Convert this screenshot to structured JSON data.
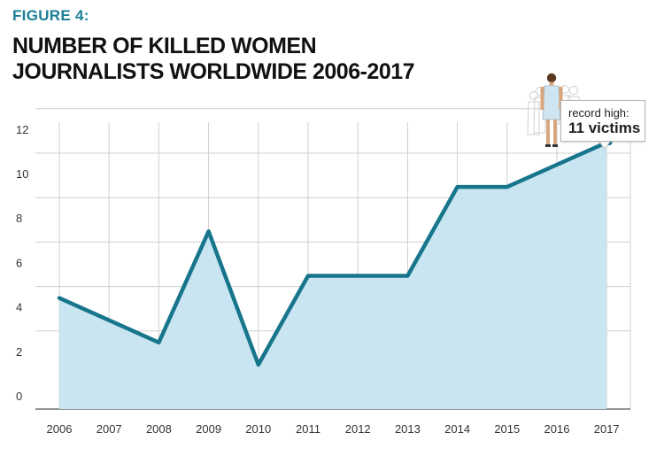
{
  "figure_label": "FIGURE 4:",
  "title_lines": [
    "NUMBER OF KILLED WOMEN",
    "JOURNALISTS WORLDWIDE 2006-2017"
  ],
  "callout": {
    "line1": "record high:",
    "line2": "11 victims"
  },
  "colors": {
    "line": "#17758c",
    "area": "#c9e5f1",
    "grid": "#cfcfcf",
    "accent": "#1b7f96",
    "marker": "#17758c"
  },
  "icons": [
    "woman-silhouette-icon"
  ],
  "chart_data": {
    "type": "area",
    "title": "NUMBER OF KILLED WOMEN JOURNALISTS WORLDWIDE 2006-2017",
    "xlabel": "",
    "ylabel": "",
    "categories": [
      "2006",
      "2007",
      "2008",
      "2009",
      "2010",
      "2011",
      "2012",
      "2013",
      "2014",
      "2015",
      "2016",
      "2017"
    ],
    "values": [
      4,
      3,
      2,
      7,
      1,
      5,
      5,
      5,
      9,
      9,
      10,
      11
    ],
    "ylim": [
      0,
      12
    ],
    "yticks": [
      0,
      2,
      4,
      6,
      8,
      10,
      12
    ],
    "grid": true,
    "legend": "none",
    "annotation": {
      "category": "2017",
      "value": 11,
      "text": "record high: 11 victims"
    }
  }
}
